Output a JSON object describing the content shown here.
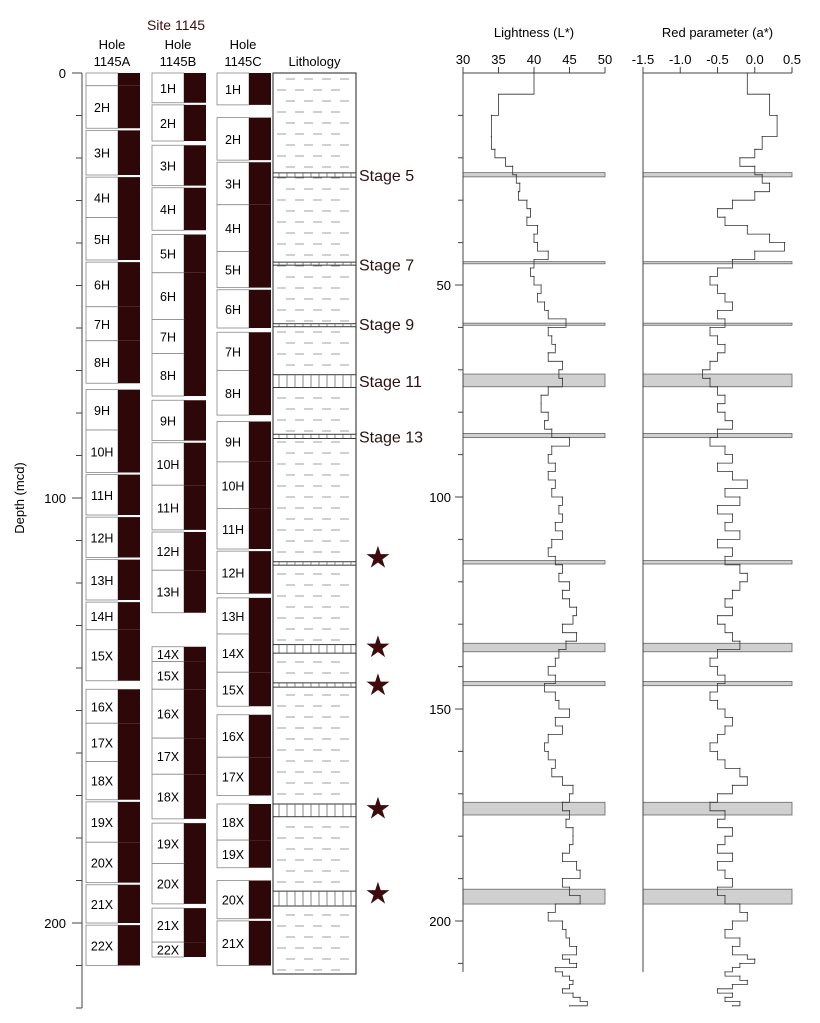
{
  "site_title": "Site 1145",
  "depth_axis": {
    "label": "Depth (mcd)",
    "ticks": [
      0,
      100,
      200
    ],
    "minor_step": 10,
    "max": 220
  },
  "holes": [
    {
      "name": "Hole",
      "id": "1145A",
      "cores": [
        {
          "label": "",
          "top": 0,
          "bottom": 3,
          "rec": 3
        },
        {
          "label": "2H",
          "top": 3,
          "bottom": 13,
          "rec": 10
        },
        {
          "label": "3H",
          "top": 13.5,
          "bottom": 24,
          "rec": 10.5
        },
        {
          "label": "4H",
          "top": 24.5,
          "bottom": 34,
          "rec": 9.5
        },
        {
          "label": "5H",
          "top": 34,
          "bottom": 44,
          "rec": 10
        },
        {
          "label": "6H",
          "top": 44.5,
          "bottom": 55,
          "rec": 10.5
        },
        {
          "label": "7H",
          "top": 55,
          "bottom": 63,
          "rec": 8
        },
        {
          "label": "8H",
          "top": 63,
          "bottom": 73,
          "rec": 10
        },
        {
          "label": "9H",
          "top": 74.5,
          "bottom": 84,
          "rec": 9.5
        },
        {
          "label": "10H",
          "top": 84,
          "bottom": 94,
          "rec": 10
        },
        {
          "label": "11H",
          "top": 94.5,
          "bottom": 104,
          "rec": 9.5
        },
        {
          "label": "12H",
          "top": 104.5,
          "bottom": 114,
          "rec": 9.5
        },
        {
          "label": "13H",
          "top": 114.5,
          "bottom": 124,
          "rec": 9.5
        },
        {
          "label": "14H",
          "top": 124.5,
          "bottom": 131,
          "rec": 6.5
        },
        {
          "label": "15X",
          "top": 131,
          "bottom": 143,
          "rec": 12
        },
        {
          "label": "16X",
          "top": 145,
          "bottom": 153,
          "rec": 8
        },
        {
          "label": "17X",
          "top": 153,
          "bottom": 162,
          "rec": 9
        },
        {
          "label": "18X",
          "top": 162,
          "bottom": 171,
          "rec": 9
        },
        {
          "label": "19X",
          "top": 171.5,
          "bottom": 181,
          "rec": 9.5
        },
        {
          "label": "20X",
          "top": 181,
          "bottom": 190.5,
          "rec": 9.5
        },
        {
          "label": "21X",
          "top": 191,
          "bottom": 200,
          "rec": 9
        },
        {
          "label": "22X",
          "top": 200.5,
          "bottom": 210,
          "rec": 9.5
        }
      ]
    },
    {
      "name": "Hole",
      "id": "1145B",
      "cores": [
        {
          "label": "1H",
          "top": 0,
          "bottom": 7,
          "rec": 7
        },
        {
          "label": "2H",
          "top": 7.5,
          "bottom": 16,
          "rec": 8.5
        },
        {
          "label": "3H",
          "top": 17,
          "bottom": 26.5,
          "rec": 9.5
        },
        {
          "label": "4H",
          "top": 27,
          "bottom": 37,
          "rec": 10
        },
        {
          "label": "5H",
          "top": 38,
          "bottom": 47,
          "rec": 9
        },
        {
          "label": "6H",
          "top": 47,
          "bottom": 58,
          "rec": 11
        },
        {
          "label": "7H",
          "top": 58,
          "bottom": 66,
          "rec": 8
        },
        {
          "label": "8H",
          "top": 66,
          "bottom": 76,
          "rec": 10
        },
        {
          "label": "9H",
          "top": 77,
          "bottom": 86.5,
          "rec": 9.5
        },
        {
          "label": "10H",
          "top": 87,
          "bottom": 97,
          "rec": 10
        },
        {
          "label": "11H",
          "top": 97,
          "bottom": 107.5,
          "rec": 10.5
        },
        {
          "label": "12H",
          "top": 108,
          "bottom": 117,
          "rec": 9
        },
        {
          "label": "13H",
          "top": 117,
          "bottom": 127,
          "rec": 10
        },
        {
          "label": "14X",
          "top": 135,
          "bottom": 138.5,
          "rec": 3.5
        },
        {
          "label": "15X",
          "top": 138.5,
          "bottom": 145,
          "rec": 6.5
        },
        {
          "label": "16X",
          "top": 145,
          "bottom": 156.5,
          "rec": 11.5
        },
        {
          "label": "17X",
          "top": 156.5,
          "bottom": 165,
          "rec": 8.5
        },
        {
          "label": "18X",
          "top": 165,
          "bottom": 175.5,
          "rec": 10.5
        },
        {
          "label": "19X",
          "top": 176.5,
          "bottom": 186,
          "rec": 9.5
        },
        {
          "label": "20X",
          "top": 186,
          "bottom": 195.5,
          "rec": 9.5
        },
        {
          "label": "21X",
          "top": 196.5,
          "bottom": 204.5,
          "rec": 8
        },
        {
          "label": "22X",
          "top": 204.5,
          "bottom": 208,
          "rec": 3.5
        }
      ]
    },
    {
      "name": "Hole",
      "id": "1145C",
      "cores": [
        {
          "label": "1H",
          "top": 0,
          "bottom": 7.5,
          "rec": 7.5
        },
        {
          "label": "2H",
          "top": 10.5,
          "bottom": 20.5,
          "rec": 10
        },
        {
          "label": "3H",
          "top": 21,
          "bottom": 31,
          "rec": 10
        },
        {
          "label": "4H",
          "top": 31,
          "bottom": 42,
          "rec": 11
        },
        {
          "label": "5H",
          "top": 42,
          "bottom": 50.5,
          "rec": 8.5
        },
        {
          "label": "6H",
          "top": 51,
          "bottom": 60,
          "rec": 9
        },
        {
          "label": "7H",
          "top": 61,
          "bottom": 70,
          "rec": 9
        },
        {
          "label": "8H",
          "top": 70,
          "bottom": 80.5,
          "rec": 10.5
        },
        {
          "label": "9H",
          "top": 82,
          "bottom": 91.5,
          "rec": 9.5
        },
        {
          "label": "10H",
          "top": 91.5,
          "bottom": 102.5,
          "rec": 11
        },
        {
          "label": "11H",
          "top": 102.5,
          "bottom": 112,
          "rec": 9.5
        },
        {
          "label": "12H",
          "top": 112.5,
          "bottom": 122.5,
          "rec": 10
        },
        {
          "label": "13H",
          "top": 123.5,
          "bottom": 132,
          "rec": 8.5
        },
        {
          "label": "14X",
          "top": 132,
          "bottom": 141,
          "rec": 9
        },
        {
          "label": "15X",
          "top": 141,
          "bottom": 149,
          "rec": 8
        },
        {
          "label": "16X",
          "top": 151,
          "bottom": 161,
          "rec": 10
        },
        {
          "label": "17X",
          "top": 161,
          "bottom": 170,
          "rec": 9
        },
        {
          "label": "18X",
          "top": 172,
          "bottom": 180.5,
          "rec": 8.5
        },
        {
          "label": "19X",
          "top": 180.5,
          "bottom": 187,
          "rec": 6.5
        },
        {
          "label": "20X",
          "top": 190,
          "bottom": 199,
          "rec": 9
        },
        {
          "label": "21X",
          "top": 199.5,
          "bottom": 210,
          "rec": 10.5
        }
      ]
    }
  ],
  "lithology": {
    "label": "Lithology",
    "beds": [
      {
        "top": 23.5,
        "bottom": 24.5
      },
      {
        "top": 44.5,
        "bottom": 45
      },
      {
        "top": 59,
        "bottom": 59.5
      },
      {
        "top": 71,
        "bottom": 74
      },
      {
        "top": 85,
        "bottom": 86
      },
      {
        "top": 115,
        "bottom": 115.8
      },
      {
        "top": 134.5,
        "bottom": 136.5
      },
      {
        "top": 143.5,
        "bottom": 144.5
      },
      {
        "top": 172,
        "bottom": 175
      },
      {
        "top": 192.5,
        "bottom": 196
      }
    ]
  },
  "stages": [
    {
      "label": "Stage 5",
      "depth": 24
    },
    {
      "label": "Stage 7",
      "depth": 45
    },
    {
      "label": "Stage 9",
      "depth": 59
    },
    {
      "label": "Stage 11",
      "depth": 72.5
    },
    {
      "label": "Stage 13",
      "depth": 85.5
    }
  ],
  "stars": [
    {
      "symbol": "★",
      "depth": 114
    },
    {
      "symbol": "★",
      "depth": 135
    },
    {
      "symbol": "★",
      "depth": 144
    },
    {
      "symbol": "★",
      "depth": 173
    },
    {
      "symbol": "★",
      "depth": 193
    }
  ],
  "chart_data": [
    {
      "type": "line",
      "title": "Lightness (L*)",
      "xlim": [
        30,
        50
      ],
      "xticks": [
        30,
        35,
        40,
        45,
        50
      ],
      "ylim": [
        0,
        210
      ],
      "yticks": [
        50,
        100,
        150,
        200
      ],
      "orientation": "depth-down",
      "series": [
        {
          "x": [
            40,
            35,
            34,
            34,
            34.5,
            36,
            37,
            37.5,
            38,
            37.8,
            39,
            39.5,
            39,
            40.5,
            40,
            40.5,
            42,
            40,
            39.5,
            40,
            41,
            40.5,
            41.5,
            42,
            44.5,
            42,
            42.5,
            43,
            42,
            44,
            43.5,
            44,
            42,
            41,
            41,
            42,
            41.5,
            42.5,
            45,
            42.5,
            42,
            43,
            42,
            43,
            42.5,
            44,
            43.5,
            44,
            43,
            44,
            42.5,
            42,
            43,
            44,
            43.5,
            45,
            44,
            45,
            46,
            45.5,
            44,
            46,
            44.5,
            43.5,
            43,
            42,
            43,
            41.5,
            43,
            43.5,
            45,
            43,
            44,
            42,
            41.5,
            42,
            43,
            42.5,
            44,
            45.5,
            45,
            44,
            45,
            44.5,
            45.5,
            45.5,
            45,
            44,
            46,
            46.5,
            44,
            45,
            46.5,
            43,
            42,
            44,
            44.5,
            45,
            46,
            44,
            45,
            46,
            43,
            44,
            45,
            45.5,
            45,
            44,
            45.5,
            46.5,
            47.5,
            45
          ],
          "y": [
            0,
            5,
            10,
            15,
            18,
            20,
            22,
            24,
            26,
            28,
            30,
            32,
            34,
            36,
            38,
            40,
            42,
            44,
            46,
            48,
            50,
            52,
            54,
            56,
            58,
            60,
            62,
            64,
            66,
            68,
            70,
            72,
            74,
            76,
            78,
            80,
            82,
            84,
            86,
            88,
            90,
            92,
            94,
            96,
            98,
            100,
            102,
            104,
            106,
            108,
            110,
            112,
            114,
            116,
            118,
            120,
            122,
            124,
            126,
            128,
            130,
            132,
            134,
            136,
            138,
            140,
            142,
            144,
            146,
            148,
            150,
            152,
            154,
            156,
            158,
            160,
            162,
            164,
            166,
            168,
            170,
            172,
            174,
            176,
            178,
            180,
            182,
            184,
            186,
            188,
            190,
            192,
            194,
            196,
            198,
            200,
            202,
            204,
            206,
            208,
            209,
            210,
            211,
            212,
            213,
            214,
            215,
            216,
            217,
            218,
            219,
            220
          ]
        }
      ],
      "highlight_bands": [
        [
          23.5,
          24.5
        ],
        [
          44.5,
          45
        ],
        [
          59,
          59.5
        ],
        [
          71,
          74
        ],
        [
          85,
          86
        ],
        [
          115,
          115.8
        ],
        [
          134.5,
          136.5
        ],
        [
          143.5,
          144.5
        ],
        [
          172,
          175
        ],
        [
          192.5,
          196
        ]
      ]
    },
    {
      "type": "line",
      "title": "Red parameter (a*)",
      "xlim": [
        -1.5,
        0.5
      ],
      "xticks": [
        -1.5,
        -1.0,
        -0.5,
        0.0,
        0.5
      ],
      "xtick_labels": [
        "-1.5",
        "-1.0",
        "-0.5",
        "0.0",
        "0.5"
      ],
      "ylim": [
        0,
        210
      ],
      "orientation": "depth-down",
      "series": [
        {
          "x": [
            -0.1,
            0.2,
            0.3,
            0.1,
            0.0,
            -0.2,
            0.0,
            0.1,
            0.2,
            0.0,
            -0.3,
            -0.5,
            -0.4,
            -0.1,
            0.2,
            0.4,
            0.0,
            -0.3,
            -0.5,
            -0.6,
            -0.5,
            -0.4,
            -0.3,
            -0.5,
            -0.4,
            -0.6,
            -0.5,
            -0.4,
            -0.5,
            -0.6,
            -0.7,
            -0.6,
            -0.5,
            -0.4,
            -0.5,
            -0.4,
            -0.3,
            -0.5,
            -0.6,
            -0.4,
            -0.3,
            -0.5,
            -0.3,
            -0.1,
            -0.4,
            -0.2,
            -0.5,
            -0.3,
            -0.4,
            -0.2,
            -0.5,
            -0.3,
            -0.4,
            -0.2,
            -0.1,
            -0.2,
            -0.3,
            -0.4,
            -0.3,
            -0.5,
            -0.4,
            -0.3,
            -0.2,
            -0.5,
            -0.6,
            -0.5,
            -0.4,
            -0.5,
            -0.6,
            -0.5,
            -0.4,
            -0.3,
            -0.4,
            -0.5,
            -0.6,
            -0.5,
            -0.4,
            -0.2,
            -0.1,
            -0.3,
            -0.5,
            -0.6,
            -0.4,
            -0.5,
            -0.3,
            -0.4,
            -0.5,
            -0.3,
            -0.5,
            -0.4,
            -0.3,
            -0.5,
            -0.4,
            -0.2,
            -0.1,
            -0.3,
            -0.4,
            -0.2,
            -0.3,
            -0.1,
            0.0,
            -0.2,
            -0.3,
            -0.4,
            -0.2,
            -0.1,
            -0.3,
            -0.5,
            -0.3,
            -0.4,
            -0.2,
            -0.3
          ],
          "y": [
            0,
            5,
            10,
            15,
            18,
            20,
            22,
            24,
            26,
            28,
            30,
            32,
            34,
            36,
            38,
            40,
            42,
            44,
            46,
            48,
            50,
            52,
            54,
            56,
            58,
            60,
            62,
            64,
            66,
            68,
            70,
            72,
            74,
            76,
            78,
            80,
            82,
            84,
            86,
            88,
            90,
            92,
            94,
            96,
            98,
            100,
            102,
            104,
            106,
            108,
            110,
            112,
            114,
            116,
            118,
            120,
            122,
            124,
            126,
            128,
            130,
            132,
            134,
            136,
            138,
            140,
            142,
            144,
            146,
            148,
            150,
            152,
            154,
            156,
            158,
            160,
            162,
            164,
            166,
            168,
            170,
            172,
            174,
            176,
            178,
            180,
            182,
            184,
            186,
            188,
            190,
            192,
            194,
            196,
            198,
            200,
            202,
            204,
            206,
            208,
            209,
            210,
            211,
            212,
            213,
            214,
            215,
            216,
            217,
            218,
            219,
            220
          ]
        }
      ],
      "highlight_bands": [
        [
          23.5,
          24.5
        ],
        [
          44.5,
          45
        ],
        [
          59,
          59.5
        ],
        [
          71,
          74
        ],
        [
          85,
          86
        ],
        [
          115,
          115.8
        ],
        [
          134.5,
          136.5
        ],
        [
          143.5,
          144.5
        ],
        [
          172,
          175
        ],
        [
          192.5,
          196
        ]
      ]
    }
  ],
  "colors": {
    "core_fill": "#2e0708",
    "band_fill": "#d0d0d0",
    "star_fill": "#3d0b0c",
    "stage_text": "#2b1010",
    "line": "#333333",
    "axis": "#444444"
  }
}
